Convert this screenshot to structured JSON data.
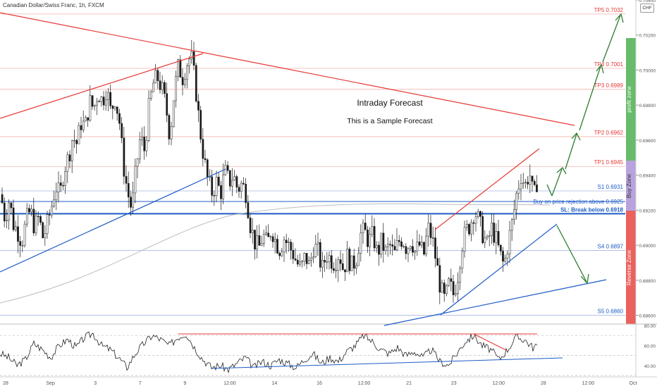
{
  "header": {
    "title": "Canadian Dollar/Swiss Franc, 1h, FXCM",
    "currency_badge": "CHF"
  },
  "colors": {
    "resistance": "#e53935",
    "support": "#1e5bc6",
    "target_arrow": "#2e7d32",
    "candle": "#1a1a1a",
    "profit_zone": "#4caf50",
    "buy_zone": "#7e57c2",
    "reverse_zone": "#e53935"
  },
  "annotations": {
    "forecast_title": "Intraday Forecast",
    "forecast_subtitle": "This is a Sample Forecast",
    "buy_note": "Buy on price rejection above 0.6925",
    "profit_zone": "profit zone",
    "buy_zone": "Buy Zone",
    "reverse_zone": "Reverse Zone"
  },
  "chart_data": [
    {
      "type": "candlestick",
      "title": "Canadian Dollar/Swiss Franc, 1h, FXCM",
      "ylim": [
        0.6855,
        0.704
      ],
      "y_ticks": [
        "0.70400",
        "0.70200",
        "0.70000",
        "0.69800",
        "0.69600",
        "0.69400",
        "0.69200",
        "0.69000",
        "0.68800",
        "0.68600"
      ],
      "x_ticks": [
        "28",
        "Sep",
        "3",
        "7",
        "9",
        "12:00",
        "14",
        "16",
        "12:00",
        "21",
        "23",
        "12:00",
        "28",
        "12:00",
        "Oct"
      ],
      "levels": [
        {
          "label": "TP5 0.7032",
          "value": 0.7032,
          "kind": "target"
        },
        {
          "label": "TP4 0.7001",
          "value": 0.7001,
          "kind": "target"
        },
        {
          "label": "TP3 0.6989",
          "value": 0.6989,
          "kind": "target"
        },
        {
          "label": "TP2 0.6962",
          "value": 0.6962,
          "kind": "target"
        },
        {
          "label": "TP1 0.6945",
          "value": 0.6945,
          "kind": "target"
        },
        {
          "label": "S1 0.6931",
          "value": 0.6931,
          "kind": "support"
        },
        {
          "label": "SL: Break below 0.6918",
          "value": 0.6918,
          "kind": "stop"
        },
        {
          "label": "S4 0.6897",
          "value": 0.6897,
          "kind": "support"
        },
        {
          "label": "S5 0.6860",
          "value": 0.686,
          "kind": "support"
        }
      ],
      "price_path": [
        [
          0,
          0.6929
        ],
        [
          6,
          0.6915
        ],
        [
          12,
          0.6926
        ],
        [
          18,
          0.6912
        ],
        [
          24,
          0.6908
        ],
        [
          30,
          0.6902
        ],
        [
          36,
          0.6914
        ],
        [
          42,
          0.692
        ],
        [
          48,
          0.691
        ],
        [
          54,
          0.6916
        ],
        [
          60,
          0.6904
        ],
        [
          66,
          0.6912
        ],
        [
          72,
          0.6922
        ],
        [
          78,
          0.6934
        ],
        [
          84,
          0.6928
        ],
        [
          90,
          0.6944
        ],
        [
          96,
          0.695
        ],
        [
          102,
          0.6962
        ],
        [
          108,
          0.6958
        ],
        [
          114,
          0.697
        ],
        [
          120,
          0.6968
        ],
        [
          126,
          0.6982
        ],
        [
          132,
          0.6978
        ],
        [
          138,
          0.6988
        ],
        [
          144,
          0.6982
        ],
        [
          150,
          0.699
        ],
        [
          156,
          0.6976
        ],
        [
          162,
          0.6984
        ],
        [
          168,
          0.6972
        ],
        [
          174,
          0.6946
        ],
        [
          180,
          0.693
        ],
        [
          186,
          0.692
        ],
        [
          192,
          0.6944
        ],
        [
          198,
          0.6962
        ],
        [
          204,
          0.6954
        ],
        [
          210,
          0.6978
        ],
        [
          216,
          0.6992
        ],
        [
          222,
          0.6996
        ],
        [
          228,
          0.699
        ],
        [
          234,
          0.698
        ],
        [
          240,
          0.6962
        ],
        [
          246,
          0.6988
        ],
        [
          252,
          0.7002
        ],
        [
          258,
          0.6996
        ],
        [
          264,
          0.7004
        ],
        [
          270,
          0.7008
        ],
        [
          276,
          0.6992
        ],
        [
          282,
          0.6968
        ],
        [
          288,
          0.695
        ],
        [
          294,
          0.6936
        ],
        [
          300,
          0.693
        ],
        [
          306,
          0.6936
        ],
        [
          312,
          0.693
        ],
        [
          318,
          0.6942
        ],
        [
          324,
          0.6936
        ],
        [
          330,
          0.694
        ],
        [
          336,
          0.6932
        ],
        [
          342,
          0.6935
        ],
        [
          348,
          0.693
        ],
        [
          354,
          0.6912
        ],
        [
          360,
          0.6902
        ],
        [
          366,
          0.6898
        ],
        [
          372,
          0.6906
        ],
        [
          378,
          0.69
        ],
        [
          384,
          0.691
        ],
        [
          390,
          0.6902
        ],
        [
          396,
          0.6898
        ],
        [
          402,
          0.6904
        ],
        [
          408,
          0.69
        ],
        [
          414,
          0.6896
        ],
        [
          420,
          0.689
        ],
        [
          426,
          0.6886
        ],
        [
          432,
          0.6894
        ],
        [
          438,
          0.6888
        ],
        [
          444,
          0.69
        ],
        [
          450,
          0.6896
        ],
        [
          456,
          0.6886
        ],
        [
          462,
          0.6895
        ],
        [
          468,
          0.6892
        ],
        [
          474,
          0.689
        ],
        [
          480,
          0.6896
        ],
        [
          486,
          0.6886
        ],
        [
          492,
          0.6894
        ],
        [
          498,
          0.6888
        ],
        [
          504,
          0.6892
        ],
        [
          510,
          0.6906
        ],
        [
          516,
          0.6908
        ],
        [
          522,
          0.6902
        ],
        [
          528,
          0.6906
        ],
        [
          534,
          0.6895
        ],
        [
          540,
          0.6902
        ],
        [
          546,
          0.6896
        ],
        [
          552,
          0.69
        ],
        [
          558,
          0.6894
        ],
        [
          564,
          0.6902
        ],
        [
          570,
          0.6904
        ],
        [
          576,
          0.6898
        ],
        [
          582,
          0.6904
        ],
        [
          588,
          0.6896
        ],
        [
          594,
          0.69
        ],
        [
          600,
          0.6894
        ],
        [
          606,
          0.691
        ],
        [
          612,
          0.6904
        ],
        [
          618,
          0.689
        ],
        [
          624,
          0.6875
        ],
        [
          630,
          0.6868
        ],
        [
          636,
          0.6878
        ],
        [
          642,
          0.6872
        ],
        [
          648,
          0.6882
        ],
        [
          654,
          0.69
        ],
        [
          660,
          0.6908
        ],
        [
          666,
          0.6912
        ],
        [
          672,
          0.692
        ],
        [
          678,
          0.6914
        ],
        [
          684,
          0.6906
        ],
        [
          690,
          0.69
        ],
        [
          696,
          0.691
        ],
        [
          702,
          0.6904
        ],
        [
          708,
          0.6895
        ],
        [
          714,
          0.6888
        ],
        [
          720,
          0.6902
        ],
        [
          726,
          0.6914
        ],
        [
          732,
          0.693
        ],
        [
          738,
          0.694
        ],
        [
          744,
          0.6934
        ],
        [
          750,
          0.6942
        ],
        [
          756,
          0.6926
        ],
        [
          762,
          0.694
        ]
      ],
      "rsi": {
        "ylim": [
          30,
          80
        ],
        "y_ticks": [
          "80.00",
          "60.00",
          "40.00"
        ],
        "reference_levels": [
          70,
          50,
          30
        ],
        "path": [
          [
            0,
            52
          ],
          [
            12,
            48
          ],
          [
            24,
            40
          ],
          [
            36,
            46
          ],
          [
            48,
            62
          ],
          [
            60,
            56
          ],
          [
            72,
            48
          ],
          [
            84,
            60
          ],
          [
            96,
            66
          ],
          [
            108,
            58
          ],
          [
            120,
            68
          ],
          [
            132,
            72
          ],
          [
            144,
            60
          ],
          [
            156,
            56
          ],
          [
            168,
            48
          ],
          [
            180,
            38
          ],
          [
            192,
            52
          ],
          [
            204,
            62
          ],
          [
            216,
            70
          ],
          [
            228,
            66
          ],
          [
            240,
            60
          ],
          [
            252,
            68
          ],
          [
            264,
            72
          ],
          [
            276,
            58
          ],
          [
            288,
            46
          ],
          [
            300,
            38
          ],
          [
            312,
            40
          ],
          [
            324,
            36
          ],
          [
            336,
            42
          ],
          [
            348,
            48
          ],
          [
            360,
            38
          ],
          [
            372,
            44
          ],
          [
            384,
            40
          ],
          [
            396,
            46
          ],
          [
            408,
            42
          ],
          [
            420,
            38
          ],
          [
            432,
            46
          ],
          [
            444,
            52
          ],
          [
            456,
            42
          ],
          [
            468,
            48
          ],
          [
            480,
            44
          ],
          [
            492,
            54
          ],
          [
            504,
            60
          ],
          [
            516,
            70
          ],
          [
            528,
            64
          ],
          [
            540,
            56
          ],
          [
            552,
            52
          ],
          [
            564,
            58
          ],
          [
            576,
            50
          ],
          [
            588,
            54
          ],
          [
            600,
            48
          ],
          [
            612,
            56
          ],
          [
            624,
            44
          ],
          [
            636,
            40
          ],
          [
            648,
            52
          ],
          [
            660,
            64
          ],
          [
            672,
            70
          ],
          [
            684,
            60
          ],
          [
            696,
            56
          ],
          [
            708,
            46
          ],
          [
            720,
            56
          ],
          [
            732,
            68
          ],
          [
            744,
            66
          ],
          [
            756,
            58
          ],
          [
            762,
            60
          ]
        ]
      }
    }
  ]
}
